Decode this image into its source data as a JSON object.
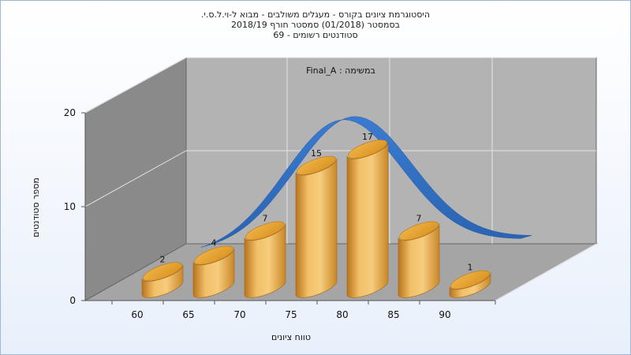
{
  "title_lines": [
    "היסטוגרמת ציונים בקורס - מעגלים משולבים - מבוא ל-וי.ל.ס.י.",
    "בסמסטר  (01/2018)  סמסטר חורף 2018/19",
    "סטודנטים רשומים - 69"
  ],
  "assignment_label": "במשימה : Final_A",
  "colors": {
    "bar_gold": "#e8a838",
    "curve_blue": "#2f6fc4",
    "back_wall": "#b3b3b3",
    "side_wall": "#8a8a8a",
    "floor": "#a5a5a5"
  },
  "chart_data": {
    "type": "bar",
    "title": "היסטוגרמת ציונים בקורס - מעגלים משולבים - מבוא ל-וי.ל.ס.י.",
    "subtitle": "בסמסטר  (01/2018)  סמסטר חורף 2018/19 / סטודנטים רשומים - 69",
    "xlabel": "טווח ציונים",
    "ylabel": "מספר סטודנטים",
    "x_ticks": [
      "60",
      "65",
      "70",
      "75",
      "80",
      "85",
      "90"
    ],
    "y_ticks": [
      "0",
      "10",
      "20"
    ],
    "ylim": [
      0,
      20
    ],
    "categories": [
      "60-65",
      "65-70",
      "70-75",
      "75-80",
      "80-85",
      "85-90",
      "90-95"
    ],
    "values": [
      2,
      4,
      7,
      15,
      17,
      7,
      1
    ],
    "grid": true,
    "style": "3d cylinders with fitted normal curve"
  }
}
